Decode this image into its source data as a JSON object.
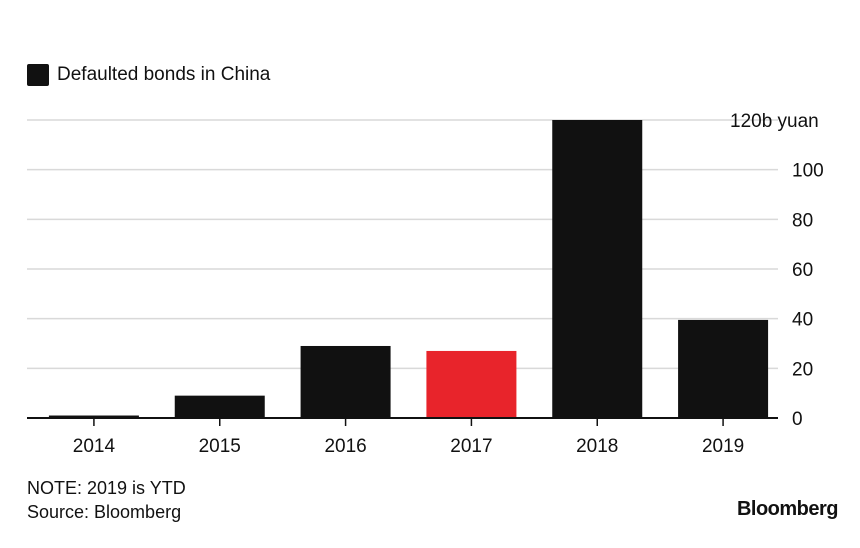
{
  "chart_data": {
    "type": "bar",
    "legend": {
      "label": "Defaulted bonds in China",
      "color": "#111111"
    },
    "categories": [
      "2014",
      "2015",
      "2016",
      "2017",
      "2018",
      "2019"
    ],
    "values": [
      1,
      9,
      29,
      27,
      120,
      39.5
    ],
    "bar_colors": [
      "#111111",
      "#111111",
      "#111111",
      "#e8242b",
      "#111111",
      "#111111"
    ],
    "y_ticks": [
      0,
      20,
      40,
      60,
      80,
      100,
      120
    ],
    "y_tick_labels": [
      "0",
      "20",
      "40",
      "60",
      "80",
      "100",
      "120b yuan"
    ],
    "ylim": [
      0,
      120
    ],
    "y_axis_position": "right",
    "grid": true,
    "legend_position": "top-left"
  },
  "notes": {
    "note": "NOTE: 2019 is YTD",
    "source": "Source: Bloomberg"
  },
  "brand": "Bloomberg"
}
